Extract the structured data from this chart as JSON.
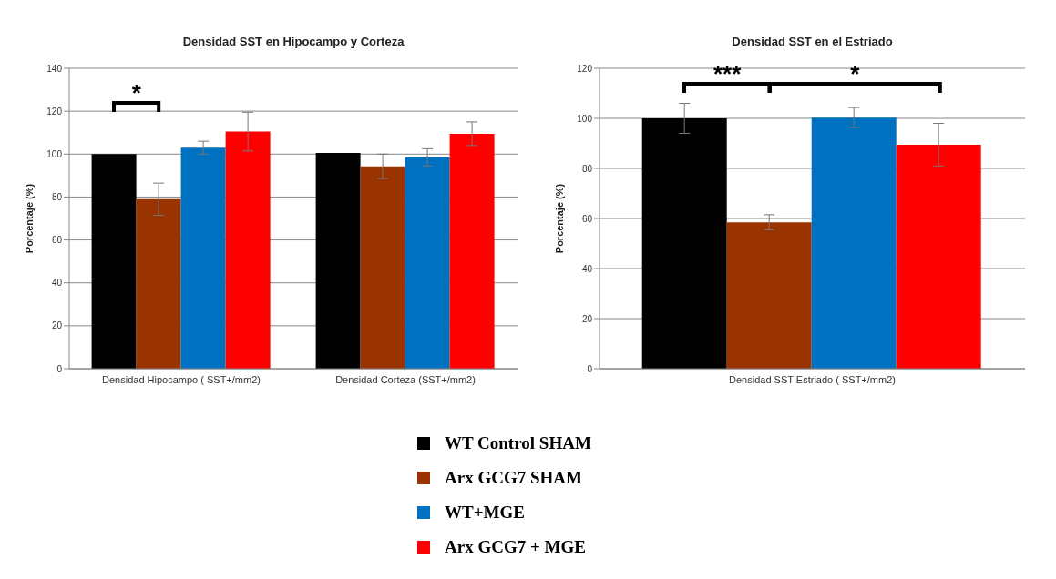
{
  "chart_data": [
    {
      "type": "bar",
      "title": "Densidad SST en Hipocampo y Corteza",
      "ylabel": "Porcentaje (%)",
      "categories": [
        "Densidad Hipocampo ( SST+/mm2)",
        "Densidad Corteza (SST+/mm2)"
      ],
      "series": [
        {
          "name": "WT Control SHAM",
          "color": "#000000",
          "values": [
            100,
            100.5
          ],
          "errors": [
            null,
            null
          ]
        },
        {
          "name": "Arx GCG7 SHAM",
          "color": "#993300",
          "values": [
            79,
            94.3
          ],
          "errors": [
            7.5,
            5.7
          ]
        },
        {
          "name": "WT+MGE",
          "color": "#0070c0",
          "values": [
            103,
            98.5
          ],
          "errors": [
            3,
            4
          ]
        },
        {
          "name": "Arx GCG7 + MGE",
          "color": "#ff0000",
          "values": [
            110.5,
            109.5
          ],
          "errors": [
            9,
            5.5
          ]
        }
      ],
      "ylim": [
        0,
        140
      ],
      "yticks": [
        0,
        20,
        40,
        60,
        80,
        100,
        120,
        140
      ],
      "grid": "y",
      "legend": "bottom",
      "annotations": [
        "*"
      ]
    },
    {
      "type": "bar",
      "title": "Densidad SST en el Estriado",
      "ylabel": "Porcentaje (%)",
      "categories": [
        "Densidad SST Estriado ( SST+/mm2)"
      ],
      "series": [
        {
          "color": "#000000",
          "values": [
            100
          ],
          "errors": [
            6
          ]
        },
        {
          "color": "#993300",
          "values": [
            58.5
          ],
          "errors": [
            3
          ]
        },
        {
          "color": "#0070c0",
          "values": [
            100.3
          ],
          "errors": [
            4
          ]
        },
        {
          "color": "#ff0000",
          "values": [
            89.5
          ],
          "errors": [
            8.5
          ]
        }
      ],
      "ylim": [
        0,
        120
      ],
      "yticks": [
        0,
        20,
        40,
        60,
        80,
        100,
        120
      ],
      "grid": "y",
      "annotations": [
        "***",
        "*"
      ]
    }
  ]
}
